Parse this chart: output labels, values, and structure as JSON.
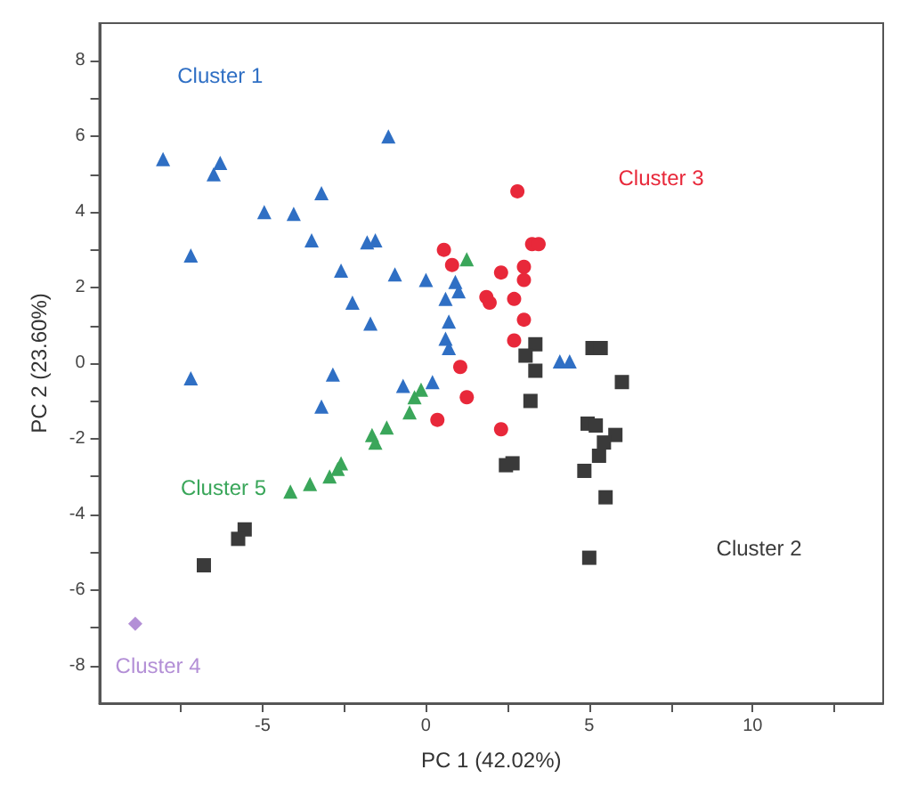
{
  "chart_data": {
    "type": "scatter",
    "xlabel": "PC 1 (42.02%)",
    "ylabel": "PC 2 (23.60%)",
    "xlim": [
      -10,
      14
    ],
    "ylim": [
      -9,
      9
    ],
    "xticks": [
      {
        "value": -7.5,
        "label": null
      },
      -5,
      {
        "value": -2.5,
        "label": null
      },
      0,
      {
        "value": 2.5,
        "label": null
      },
      5,
      {
        "value": 7.5,
        "label": null
      },
      10,
      {
        "value": 12.5,
        "label": null
      }
    ],
    "yticks": [
      -8,
      {
        "value": -7,
        "label": null
      },
      -6,
      {
        "value": -5,
        "label": null
      },
      -4,
      {
        "value": -3,
        "label": null
      },
      -2,
      {
        "value": -1,
        "label": null
      },
      0,
      {
        "value": 1,
        "label": null
      },
      2,
      {
        "value": 3,
        "label": null
      },
      4,
      {
        "value": 5,
        "label": null
      },
      6,
      {
        "value": 7,
        "label": null
      },
      8
    ],
    "grid": false,
    "legend": false,
    "series": [
      {
        "name": "Cluster 1",
        "color": "#2f6fc4",
        "marker": "triangle",
        "x": [
          -8.05,
          -6.3,
          -6.5,
          -1.15,
          -3.2,
          -4.95,
          -4.05,
          -3.5,
          -1.8,
          -1.55,
          -7.2,
          -2.6,
          -0.95,
          -2.25,
          -1.7,
          -7.2,
          -2.85,
          -3.2,
          0,
          0.9,
          0.6,
          1.0,
          0.7,
          0.6,
          0.7,
          -0.7,
          0.2,
          4.1,
          4.4
        ],
        "values": [
          5.4,
          5.3,
          5.0,
          6.0,
          4.5,
          4.0,
          3.95,
          3.25,
          3.2,
          3.25,
          2.85,
          2.45,
          2.35,
          1.6,
          1.05,
          -0.4,
          -0.3,
          -1.15,
          2.2,
          2.15,
          1.7,
          1.9,
          1.1,
          0.65,
          0.4,
          -0.6,
          -0.5,
          0.05,
          0.05
        ]
      },
      {
        "name": "Cluster 2",
        "color": "#3a3a3a",
        "marker": "square",
        "x": [
          3.35,
          3.05,
          3.35,
          3.2,
          5.1,
          5.35,
          6.0,
          4.95,
          5.2,
          5.8,
          5.45,
          5.3,
          4.85,
          5.5,
          5.0,
          2.45,
          2.65,
          -5.55,
          -5.75,
          -6.8
        ],
        "values": [
          0.5,
          0.2,
          -0.2,
          -1.0,
          0.4,
          0.4,
          -0.5,
          -1.6,
          -1.65,
          -1.9,
          -2.1,
          -2.45,
          -2.85,
          -3.55,
          -5.15,
          -2.7,
          -2.65,
          -4.4,
          -4.65,
          -5.35
        ]
      },
      {
        "name": "Cluster 3",
        "color": "#e8283a",
        "marker": "circle",
        "x": [
          2.8,
          0.55,
          0.8,
          3.25,
          3.45,
          2.3,
          3.0,
          3.0,
          1.85,
          1.95,
          2.7,
          3.0,
          2.7,
          1.05,
          1.25,
          0.35,
          2.3
        ],
        "values": [
          4.55,
          3.0,
          2.6,
          3.15,
          3.15,
          2.4,
          2.55,
          2.2,
          1.75,
          1.6,
          1.7,
          1.15,
          0.6,
          -0.1,
          -0.9,
          -1.5,
          -1.75
        ]
      },
      {
        "name": "Cluster 4",
        "color": "#b38fd6",
        "marker": "diamond",
        "x": [
          -8.9
        ],
        "values": [
          -6.9
        ]
      },
      {
        "name": "Cluster 5",
        "color": "#3aa65a",
        "marker": "triangle",
        "x": [
          -4.15,
          -3.55,
          -2.95,
          -2.6,
          -2.7,
          -1.65,
          -1.55,
          -1.2,
          -0.5,
          -0.35,
          -0.15,
          1.25
        ],
        "values": [
          -3.4,
          -3.2,
          -3.0,
          -2.65,
          -2.8,
          -1.9,
          -2.1,
          -1.7,
          -1.3,
          -0.9,
          -0.7,
          2.75
        ]
      }
    ]
  }
}
